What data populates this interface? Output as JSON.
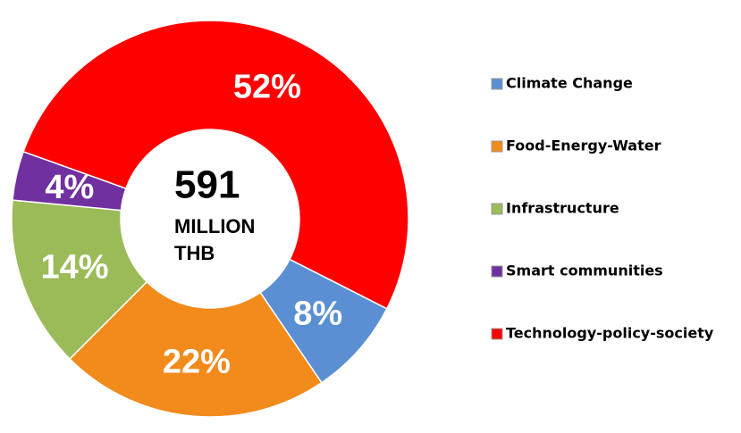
{
  "chart_data": {
    "type": "donut",
    "center_value": "591",
    "center_unit": "MILLION",
    "center_currency": "THB",
    "categories": [
      "Climate Change",
      "Food-Energy-Water",
      "Infrastructure",
      "Smart communities",
      "Technology-policy-society"
    ],
    "values": [
      8,
      22,
      14,
      4,
      52
    ],
    "value_labels": [
      "8%",
      "22%",
      "14%",
      "4%",
      "52%"
    ],
    "colors": [
      "#5b8fd4",
      "#f28a1c",
      "#9bbb59",
      "#7030a0",
      "#ff0000"
    ],
    "legend": "right"
  }
}
